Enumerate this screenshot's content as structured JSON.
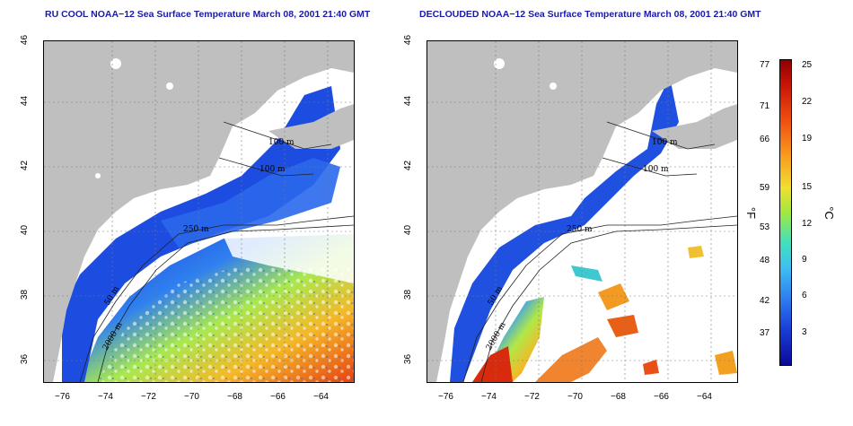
{
  "titles": {
    "left": "RU COOL NOAA−12 Sea Surface Temperature March 08, 2001 21:40 GMT",
    "right": "DECLOUDED NOAA−12 Sea Surface Temperature March 08, 2001 21:40 GMT"
  },
  "map": {
    "x_ticks": [
      "−76",
      "−74",
      "−72",
      "−70",
      "−68",
      "−66",
      "−64"
    ],
    "y_ticks": [
      "36",
      "38",
      "40",
      "42",
      "44",
      "46"
    ],
    "contour_labels_left": [
      "100 m",
      "100 m",
      "250 m",
      "50 m",
      "2000 m"
    ],
    "contour_labels_right": [
      "100 m",
      "100 m",
      "250 m",
      "50 m",
      "2000 m"
    ],
    "land_color": "#bfbfbf",
    "cloud_color": "#ffffff"
  },
  "colorbar": {
    "fahrenheit_ticks": [
      "77",
      "71",
      "66",
      "59",
      "53",
      "48",
      "42",
      "37"
    ],
    "celsius_ticks": [
      "25",
      "22",
      "19",
      "15",
      "12",
      "9",
      "6",
      "3"
    ],
    "left_unit": "°F",
    "right_unit": "°C"
  }
}
